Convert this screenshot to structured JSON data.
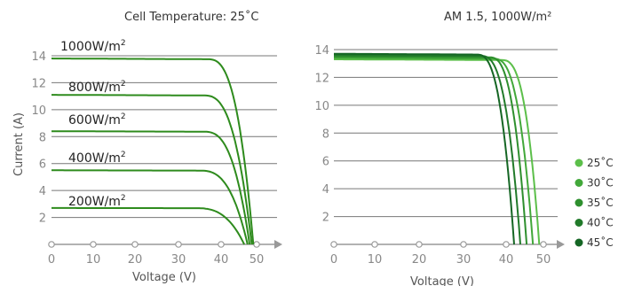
{
  "chart_data": [
    {
      "type": "line",
      "title": "Cell Temperature: 25˚C",
      "xlabel": "Voltage (V)",
      "ylabel": "Current (A)",
      "xlim": [
        0,
        52
      ],
      "ylim": [
        0,
        14.5
      ],
      "x_ticks": [
        "0",
        "10",
        "20",
        "30",
        "40",
        "50"
      ],
      "y_ticks": [
        "2",
        "4",
        "6",
        "8",
        "10",
        "12",
        "14"
      ],
      "grid": true,
      "series": [
        {
          "name": "1000W/m²",
          "label_base": "1000W/m",
          "label_sup": "2",
          "isc": 13.8,
          "voc": 49.2,
          "knee": 38,
          "color": "#2e8b1d"
        },
        {
          "name": "800W/m²",
          "label_base": "800W/m",
          "label_sup": "2",
          "isc": 11.1,
          "voc": 48.8,
          "knee": 37,
          "color": "#2e8b1d"
        },
        {
          "name": "600W/m²",
          "label_base": "600W/m",
          "label_sup": "2",
          "isc": 8.4,
          "voc": 48.3,
          "knee": 37,
          "color": "#2e8b1d"
        },
        {
          "name": "400W/m²",
          "label_base": "400W/m",
          "label_sup": "2",
          "isc": 5.5,
          "voc": 47.8,
          "knee": 36,
          "color": "#2e8b1d"
        },
        {
          "name": "200W/m²",
          "label_base": "200W/m",
          "label_sup": "2",
          "isc": 2.7,
          "voc": 47.0,
          "knee": 35,
          "color": "#2e8b1d"
        }
      ]
    },
    {
      "type": "line",
      "title": "AM 1.5, 1000W/m²",
      "xlabel": "Voltage (V)",
      "ylabel": "",
      "xlim": [
        0,
        52
      ],
      "ylim": [
        0,
        14.5
      ],
      "x_ticks": [
        "0",
        "10",
        "20",
        "30",
        "40",
        "50"
      ],
      "y_ticks": [
        "2",
        "4",
        "6",
        "8",
        "10",
        "12",
        "14"
      ],
      "grid": true,
      "legend_position": "right",
      "series": [
        {
          "name": "25˚C",
          "isc": 13.3,
          "voc": 49.0,
          "knee": 40,
          "color": "#5cbf4a"
        },
        {
          "name": "30˚C",
          "isc": 13.4,
          "voc": 47.5,
          "knee": 38,
          "color": "#42a83a"
        },
        {
          "name": "35˚C",
          "isc": 13.5,
          "voc": 46.0,
          "knee": 37,
          "color": "#2e8f2e"
        },
        {
          "name": "40˚C",
          "isc": 13.6,
          "voc": 44.5,
          "knee": 35,
          "color": "#217a2a"
        },
        {
          "name": "45˚C",
          "isc": 13.7,
          "voc": 43.0,
          "knee": 34,
          "color": "#156624"
        }
      ]
    }
  ]
}
